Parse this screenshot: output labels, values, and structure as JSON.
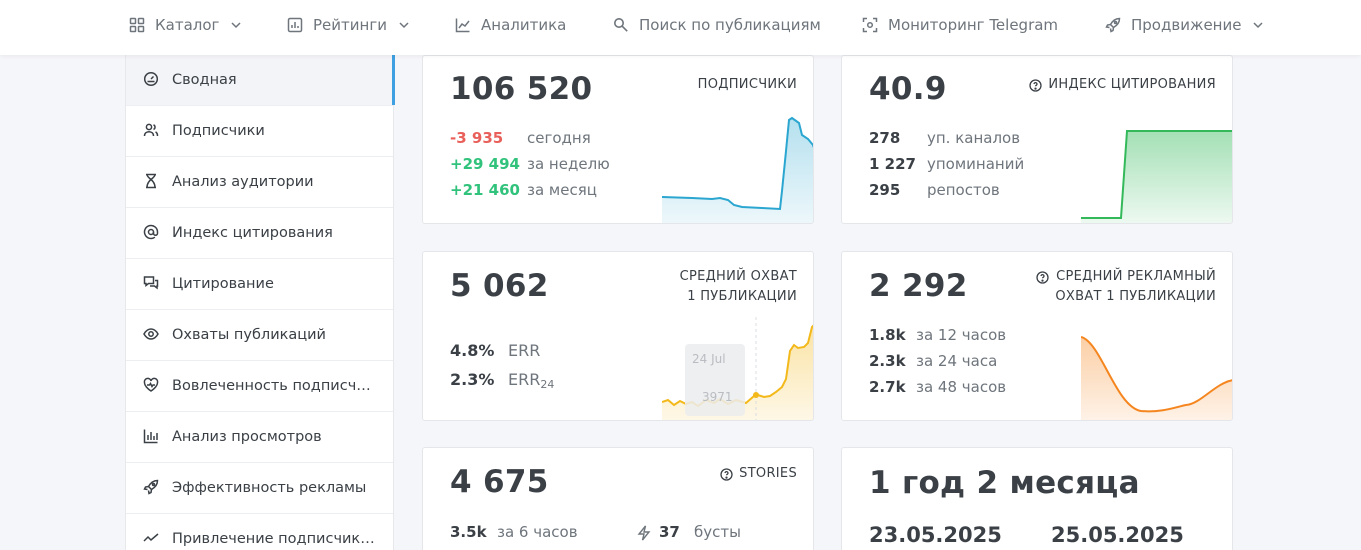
{
  "nav": {
    "items": [
      {
        "label": "Каталог",
        "icon": "grid-icon",
        "dropdown": true
      },
      {
        "label": "Рейтинги",
        "icon": "ratings-icon",
        "dropdown": true
      },
      {
        "label": "Аналитика",
        "icon": "analytics-icon",
        "dropdown": false
      },
      {
        "label": "Поиск по публикациям",
        "icon": "search-icon",
        "dropdown": false
      },
      {
        "label": "Мониторинг Telegram",
        "icon": "monitor-icon",
        "dropdown": false
      },
      {
        "label": "Продвижение",
        "icon": "rocket-icon",
        "dropdown": true
      }
    ]
  },
  "sidebar": {
    "items": [
      {
        "label": "Сводная",
        "icon": "dashboard-icon",
        "active": true
      },
      {
        "label": "Подписчики",
        "icon": "users-icon"
      },
      {
        "label": "Анализ аудитории",
        "icon": "hourglass-icon"
      },
      {
        "label": "Индекс цитирования",
        "icon": "at-icon"
      },
      {
        "label": "Цитирование",
        "icon": "quote-icon"
      },
      {
        "label": "Охваты публикаций",
        "icon": "eye-icon"
      },
      {
        "label": "Вовлеченность подписчиков",
        "icon": "heart-icon"
      },
      {
        "label": "Анализ просмотров",
        "icon": "bar-chart-icon"
      },
      {
        "label": "Эффективность рекламы",
        "icon": "rocket-icon"
      },
      {
        "label": "Привлечение подписчиков",
        "icon": "trend-icon"
      }
    ]
  },
  "cards": {
    "subscribers": {
      "value": "106 520",
      "caption": "ПОДПИСЧИКИ",
      "rows": [
        {
          "value": "-3 935",
          "label": "сегодня",
          "tone": "neg"
        },
        {
          "value": "+29 494",
          "label": "за неделю",
          "tone": "pos"
        },
        {
          "value": "+21 460",
          "label": "за месяц",
          "tone": "pos"
        }
      ],
      "color": "#2aa6d0"
    },
    "citation": {
      "value": "40.9",
      "caption": "ИНДЕКС ЦИТИРОВАНИЯ",
      "rows": [
        {
          "value": "278",
          "label": "уп. каналов"
        },
        {
          "value": "1 227",
          "label": "упоминаний"
        },
        {
          "value": "295",
          "label": "репостов"
        }
      ],
      "color": "#34b95a"
    },
    "reach": {
      "value": "5 062",
      "caption_line1": "СРЕДНИЙ ОХВАТ",
      "caption_line2": "1 ПУБЛИКАЦИИ",
      "err": {
        "value": "4.8%",
        "label": "ERR"
      },
      "err24": {
        "value": "2.3%",
        "label": "ERR",
        "sub": "24"
      },
      "tooltip": {
        "date": "24 Jul",
        "value": "3971"
      },
      "color": "#f3b81a"
    },
    "ad_reach": {
      "value": "2 292",
      "caption_line1": "СРЕДНИЙ РЕКЛАМНЫЙ",
      "caption_line2": "ОХВАТ 1 ПУБЛИКАЦИИ",
      "rows": [
        {
          "value": "1.8k",
          "label": "за 12 часов"
        },
        {
          "value": "2.3k",
          "label": "за 24 часа"
        },
        {
          "value": "2.7k",
          "label": "за 48 часов"
        }
      ],
      "color": "#f5861f"
    },
    "stories": {
      "value": "4 675",
      "caption": "STORIES",
      "row_left": {
        "value": "3.5k",
        "label": "за 6 часов"
      },
      "row_right": {
        "value": "37",
        "label": "бусты"
      }
    },
    "age": {
      "value": "1 год 2 месяца",
      "date1": "23.05.2025",
      "date2": "25.05.2025"
    }
  }
}
